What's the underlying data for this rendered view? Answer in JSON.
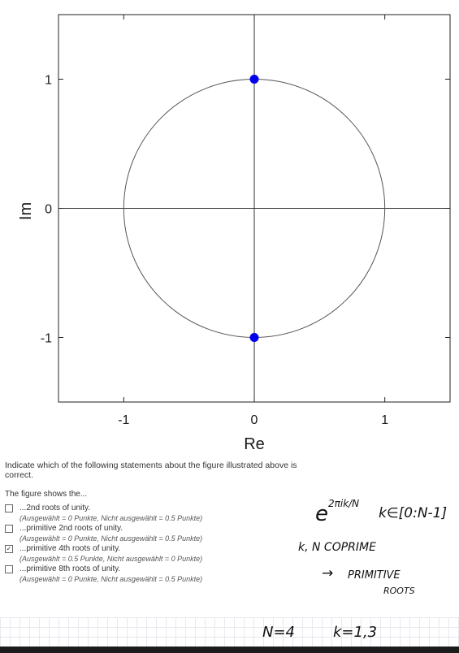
{
  "chart_data": {
    "type": "scatter",
    "xlabel": "Re",
    "ylabel": "Im",
    "xlim": [
      -1.5,
      1.5
    ],
    "ylim": [
      -1.5,
      1.5
    ],
    "xticks": [
      "-1",
      "0",
      "1"
    ],
    "yticks": [
      "1",
      "0",
      "-1"
    ],
    "unit_circle": true,
    "points": [
      {
        "x": 0,
        "y": 1
      },
      {
        "x": 0,
        "y": -1
      }
    ],
    "point_color": "#0000ee"
  },
  "quiz": {
    "question": "Indicate which of the following statements about the figure illustrated above is correct.",
    "prompt": "The figure shows the...",
    "options": [
      {
        "label": "...2nd roots of unity.",
        "score": "(Ausgewählt = 0 Punkte, Nicht ausgewählt = 0.5 Punkte)",
        "checked": false
      },
      {
        "label": "...primitive 2nd roots of unity.",
        "score": "(Ausgewählt = 0 Punkte, Nicht ausgewählt = 0.5 Punkte)",
        "checked": false
      },
      {
        "label": "...primitive 4th roots of unity.",
        "score": "(Ausgewählt = 0.5 Punkte, Nicht ausgewählt = 0 Punkte)",
        "checked": true
      },
      {
        "label": "...primitive 8th roots of unity.",
        "score": "(Ausgewählt = 0 Punkte, Nicht ausgewählt = 0.5 Punkte)",
        "checked": false
      }
    ]
  },
  "notes": {
    "formula_base": "e",
    "formula_exp": "2πik/N",
    "formula_range": "k∈[0:N-1]",
    "coprime": "k, N COPRIME",
    "arrow": "→",
    "primitive": "PRIMITIVE",
    "roots": "ROOTS",
    "n_value": "N=4",
    "k_value": "k=1,3"
  }
}
